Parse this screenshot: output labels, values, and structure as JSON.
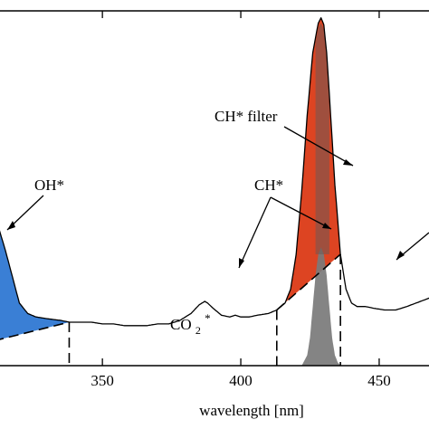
{
  "chart_data": {
    "type": "line",
    "xlabel": "wavelength [nm]",
    "xticks": [
      350,
      400,
      450
    ],
    "xlim": [
      313,
      468
    ],
    "ylim": [
      0,
      1.02
    ],
    "grid": false,
    "spectrum": {
      "x": [
        300,
        305,
        308,
        310,
        312,
        315,
        318,
        320,
        323,
        326,
        330,
        335,
        338,
        342,
        346,
        350,
        354,
        358,
        362,
        366,
        370,
        374,
        378,
        382,
        385,
        387,
        388,
        390,
        393,
        396,
        398,
        400,
        403,
        406,
        410,
        413,
        416,
        418,
        420,
        422,
        424,
        426,
        428,
        429,
        430,
        431,
        432,
        434,
        436,
        438,
        440,
        442,
        445,
        448,
        452,
        456,
        460,
        465,
        470
      ],
      "y": [
        0.05,
        0.15,
        0.35,
        0.42,
        0.41,
        0.33,
        0.24,
        0.18,
        0.15,
        0.14,
        0.135,
        0.13,
        0.125,
        0.125,
        0.125,
        0.12,
        0.12,
        0.115,
        0.115,
        0.115,
        0.12,
        0.12,
        0.13,
        0.15,
        0.175,
        0.185,
        0.18,
        0.165,
        0.145,
        0.14,
        0.145,
        0.14,
        0.14,
        0.145,
        0.15,
        0.16,
        0.18,
        0.22,
        0.32,
        0.5,
        0.72,
        0.9,
        0.985,
        1.0,
        0.98,
        0.9,
        0.78,
        0.52,
        0.32,
        0.22,
        0.18,
        0.17,
        0.17,
        0.165,
        0.16,
        0.16,
        0.17,
        0.185,
        0.2
      ]
    },
    "filter": {
      "x": [
        422,
        424,
        425,
        426,
        427,
        428,
        429,
        430,
        431,
        432,
        433,
        434,
        435,
        436
      ],
      "y": [
        0.0,
        0.03,
        0.08,
        0.17,
        0.26,
        0.32,
        0.34,
        0.32,
        0.26,
        0.17,
        0.08,
        0.03,
        0.01,
        0.0
      ]
    },
    "bands": [
      {
        "label": "OH*",
        "range": [
          300,
          338
        ],
        "color": "#3a7fd5"
      },
      {
        "label": "CO₂*",
        "range": [
          338,
          413
        ]
      },
      {
        "label": "CH*",
        "range": [
          413,
          436
        ],
        "color": "#dd4422"
      }
    ],
    "annotations": {
      "oh": "OH*",
      "ch": "CH*",
      "chfilter": "CH* filter",
      "co2_base": "CO",
      "co2_sub": "2",
      "co2_sup": "*"
    },
    "colors": {
      "oh_fill": "#3a7fd5",
      "ch_fill": "#dd4422",
      "filter_fill": "#7a7a7a"
    }
  }
}
